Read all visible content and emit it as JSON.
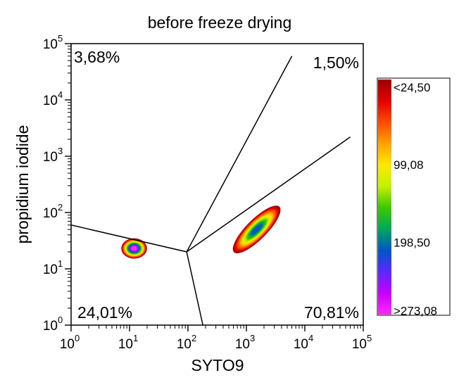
{
  "chart_data": {
    "type": "scatter",
    "subtype": "density-flow-cytometry",
    "title": "before freeze drying",
    "xlabel": "SYTO9",
    "ylabel": "propidium iodide",
    "xscale": "log",
    "yscale": "log",
    "xlim": [
      1,
      100000
    ],
    "ylim": [
      1,
      100000
    ],
    "x_ticks": [
      {
        "value": 1,
        "base": "10",
        "exp": "0"
      },
      {
        "value": 10,
        "base": "10",
        "exp": "1"
      },
      {
        "value": 100,
        "base": "10",
        "exp": "2"
      },
      {
        "value": 1000,
        "base": "10",
        "exp": "3"
      },
      {
        "value": 10000,
        "base": "10",
        "exp": "4"
      },
      {
        "value": 100000,
        "base": "10",
        "exp": "5"
      }
    ],
    "y_ticks": [
      {
        "value": 1,
        "base": "10",
        "exp": "0"
      },
      {
        "value": 10,
        "base": "10",
        "exp": "1"
      },
      {
        "value": 100,
        "base": "10",
        "exp": "2"
      },
      {
        "value": 1000,
        "base": "10",
        "exp": "3"
      },
      {
        "value": 10000,
        "base": "10",
        "exp": "4"
      },
      {
        "value": 100000,
        "base": "10",
        "exp": "5"
      }
    ],
    "gate_center": [
      95,
      20
    ],
    "gate_lines": [
      {
        "from": [
          95,
          20
        ],
        "to": [
          1,
          60
        ]
      },
      {
        "from": [
          95,
          20
        ],
        "to": [
          6000,
          60000
        ]
      },
      {
        "from": [
          95,
          20
        ],
        "to": [
          60000,
          2200
        ]
      },
      {
        "from": [
          95,
          20
        ],
        "to": [
          180,
          1
        ]
      }
    ],
    "quadrants": [
      {
        "label": "3,68%",
        "position": "top-left"
      },
      {
        "label": "1,50%",
        "position": "top-right-upper"
      },
      {
        "label": "24,01%",
        "position": "bottom-left"
      },
      {
        "label": "70,81%",
        "position": "bottom-right"
      }
    ],
    "populations": [
      {
        "center": [
          12,
          23
        ],
        "spread_x_decades": 0.22,
        "spread_y_decades": 0.18,
        "tilt_deg": 0,
        "peak_density": 273
      },
      {
        "center": [
          1500,
          50
        ],
        "spread_x_decades": 0.55,
        "spread_y_decades": 0.18,
        "tilt_deg": 45,
        "peak_density": 198
      }
    ],
    "colorbar": {
      "colors": [
        "#9b0000",
        "#e40000",
        "#ff4a00",
        "#ffa200",
        "#ffe800",
        "#c5f000",
        "#3cc800",
        "#00a85a",
        "#0055c8",
        "#5a28ff",
        "#c800ff",
        "#ff28ff"
      ],
      "labels": [
        "<24,50",
        "99,08",
        "198,50",
        ">273,08"
      ],
      "label_positions": [
        0.03,
        0.36,
        0.69,
        0.98
      ]
    }
  }
}
